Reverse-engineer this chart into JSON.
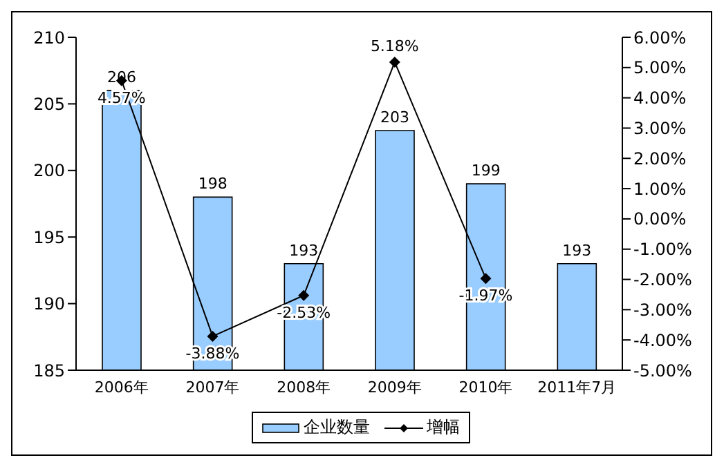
{
  "chart_data": {
    "type": "bar",
    "categories": [
      "2006年",
      "2007年",
      "2008年",
      "2009年",
      "2010年",
      "2011年7月"
    ],
    "series": [
      {
        "name": "企业数量",
        "color": "#99ccff",
        "values": [
          206,
          198,
          193,
          203,
          199,
          193
        ],
        "value_labels": [
          "206",
          "198",
          "193",
          "203",
          "199",
          "193"
        ]
      },
      {
        "name": "增幅",
        "type": "line",
        "axis": "y2",
        "color": "#000000",
        "values": [
          4.57,
          -3.88,
          -2.53,
          5.18,
          -1.97,
          null
        ],
        "value_labels": [
          "4.57%",
          "-3.88%",
          "-2.53%",
          "5.18%",
          "-1.97%",
          null
        ]
      }
    ],
    "ylim": [
      185,
      210
    ],
    "yticks": [
      185,
      190,
      195,
      200,
      205,
      210
    ],
    "y2lim": [
      -5,
      6
    ],
    "y2ticks": [
      {
        "value": -5,
        "label": "-5.00%"
      },
      {
        "value": -4,
        "label": "-4.00%"
      },
      {
        "value": -3,
        "label": "-3.00%"
      },
      {
        "value": -2,
        "label": "-2.00%"
      },
      {
        "value": -1,
        "label": "-1.00%"
      },
      {
        "value": 0,
        "label": "0.00%"
      },
      {
        "value": 1,
        "label": "1.00%"
      },
      {
        "value": 2,
        "label": "2.00%"
      },
      {
        "value": 3,
        "label": "3.00%"
      },
      {
        "value": 4,
        "label": "4.00%"
      },
      {
        "value": 5,
        "label": "5.00%"
      },
      {
        "value": 6,
        "label": "6.00%"
      }
    ],
    "grid": false,
    "legend": "bottom",
    "marker": "diamond",
    "line_style": "solid"
  }
}
